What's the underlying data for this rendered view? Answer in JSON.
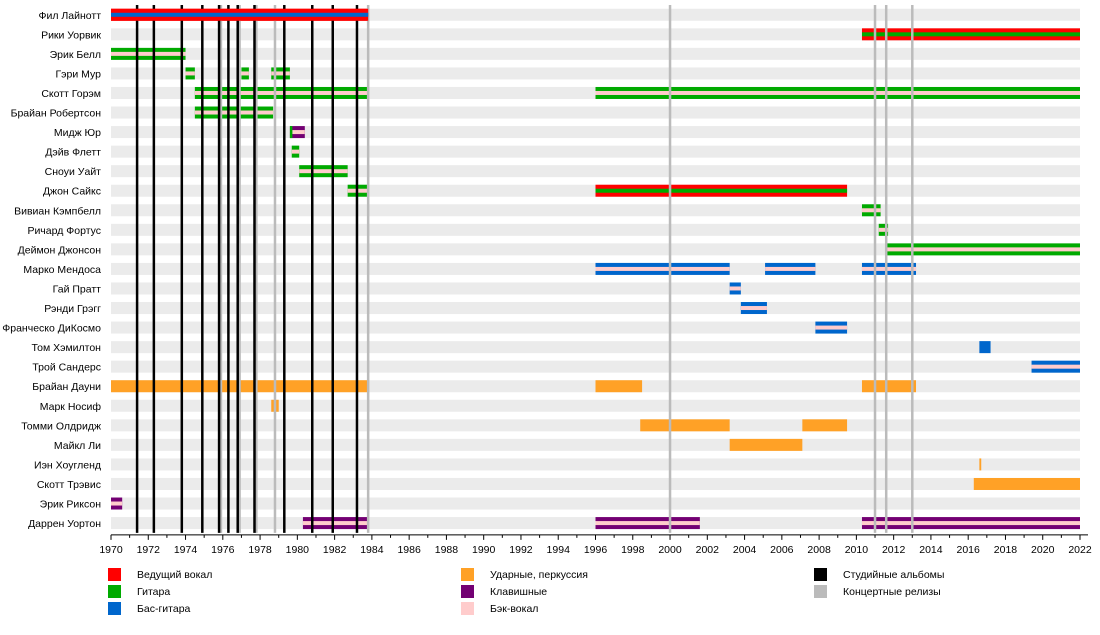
{
  "chart_data": {
    "type": "timeline",
    "title": "",
    "xlabel": "",
    "ylabel": "",
    "xlim": [
      1970,
      2022
    ],
    "x_ticks": [
      1970,
      1972,
      1974,
      1976,
      1978,
      1980,
      1982,
      1984,
      1986,
      1988,
      1990,
      1992,
      1994,
      1996,
      1998,
      2000,
      2002,
      2004,
      2006,
      2008,
      2010,
      2012,
      2014,
      2016,
      2018,
      2020,
      2022
    ],
    "grid": false,
    "colors": {
      "lead_vocals": "#ff0000",
      "guitar": "#00aa00",
      "bass": "#0066cc",
      "drums": "#ffa126",
      "keyboards": "#730073",
      "backing_vocals": "#ffcccc",
      "studio": "#000000",
      "live": "#bbbbbb",
      "row_bg": "#ebebeb"
    },
    "members": [
      {
        "name": "Фил Лайнотт",
        "bars": [
          {
            "start": 1970,
            "end": 1983.8,
            "main": "lead_vocals",
            "stripe": "bass"
          }
        ]
      },
      {
        "name": "Рики Уорвик",
        "bars": [
          {
            "start": 2010.3,
            "end": 2022,
            "main": "lead_vocals",
            "stripe": "guitar"
          }
        ]
      },
      {
        "name": "Эрик Белл",
        "bars": [
          {
            "start": 1970,
            "end": 1974.0,
            "main": "guitar",
            "stripe": "backing_vocals"
          }
        ]
      },
      {
        "name": "Гэри Мур",
        "bars": [
          {
            "start": 1974.0,
            "end": 1974.5,
            "main": "guitar",
            "stripe": "backing_vocals"
          },
          {
            "start": 1977.0,
            "end": 1977.4,
            "main": "guitar",
            "stripe": "backing_vocals"
          },
          {
            "start": 1978.6,
            "end": 1979.6,
            "main": "guitar",
            "stripe": "backing_vocals"
          }
        ]
      },
      {
        "name": "Скотт Горэм",
        "bars": [
          {
            "start": 1974.5,
            "end": 1983.8,
            "main": "guitar",
            "stripe": "backing_vocals"
          },
          {
            "start": 1996,
            "end": 2022,
            "main": "guitar",
            "stripe": "backing_vocals"
          }
        ]
      },
      {
        "name": "Брайан Робертсон",
        "bars": [
          {
            "start": 1974.5,
            "end": 1978.7,
            "main": "guitar",
            "stripe": "backing_vocals"
          }
        ]
      },
      {
        "name": "Мидж Юр",
        "bars": [
          {
            "start": 1979.6,
            "end": 1980.4,
            "main": "keyboards",
            "stripe": "backing_vocals",
            "lead": "guitar"
          }
        ]
      },
      {
        "name": "Дэйв Флетт",
        "bars": [
          {
            "start": 1979.7,
            "end": 1980.1,
            "main": "guitar",
            "stripe": "backing_vocals"
          }
        ]
      },
      {
        "name": "Сноуи Уайт",
        "bars": [
          {
            "start": 1980.1,
            "end": 1982.7,
            "main": "guitar",
            "stripe": "backing_vocals"
          }
        ]
      },
      {
        "name": "Джон Сайкс",
        "bars": [
          {
            "start": 1982.7,
            "end": 1983.8,
            "main": "guitar",
            "stripe": "backing_vocals"
          },
          {
            "start": 1996,
            "end": 2009.5,
            "main": "lead_vocals",
            "stripe": "guitar"
          }
        ]
      },
      {
        "name": "Вивиан Кэмпбелл",
        "bars": [
          {
            "start": 2010.3,
            "end": 2011.3,
            "main": "guitar",
            "stripe": "backing_vocals"
          }
        ]
      },
      {
        "name": "Ричард Фортус",
        "bars": [
          {
            "start": 2011.2,
            "end": 2011.7,
            "main": "guitar",
            "stripe": "backing_vocals"
          }
        ]
      },
      {
        "name": "Деймон Джонсон",
        "bars": [
          {
            "start": 2011.6,
            "end": 2022,
            "main": "guitar",
            "stripe": "backing_vocals"
          }
        ]
      },
      {
        "name": "Марко Мендоса",
        "bars": [
          {
            "start": 1996,
            "end": 2003.2,
            "main": "bass",
            "stripe": "backing_vocals"
          },
          {
            "start": 2005.1,
            "end": 2007.8,
            "main": "bass",
            "stripe": "backing_vocals"
          },
          {
            "start": 2010.3,
            "end": 2013.2,
            "main": "bass",
            "stripe": "backing_vocals"
          }
        ]
      },
      {
        "name": "Гай Пратт",
        "bars": [
          {
            "start": 2003.2,
            "end": 2003.8,
            "main": "bass",
            "stripe": "backing_vocals"
          }
        ]
      },
      {
        "name": "Рэнди Грэгг",
        "bars": [
          {
            "start": 2003.8,
            "end": 2005.2,
            "main": "bass",
            "stripe": "backing_vocals"
          }
        ]
      },
      {
        "name": "Франческо ДиКосмо",
        "bars": [
          {
            "start": 2007.8,
            "end": 2009.5,
            "main": "bass",
            "stripe": "backing_vocals"
          }
        ]
      },
      {
        "name": "Том Хэмилтон",
        "bars": [
          {
            "start": 2016.6,
            "end": 2017.2,
            "main": "bass",
            "stripe": null
          }
        ]
      },
      {
        "name": "Трой Сандерс",
        "bars": [
          {
            "start": 2019.4,
            "end": 2022,
            "main": "bass",
            "stripe": "backing_vocals"
          }
        ]
      },
      {
        "name": "Брайан Дауни",
        "bars": [
          {
            "start": 1970,
            "end": 1983.8,
            "main": "drums",
            "stripe": null
          },
          {
            "start": 1996,
            "end": 1998.5,
            "main": "drums",
            "stripe": null
          },
          {
            "start": 2010.3,
            "end": 2013.2,
            "main": "drums",
            "stripe": null
          }
        ]
      },
      {
        "name": "Марк Носиф",
        "bars": [
          {
            "start": 1978.6,
            "end": 1979.0,
            "main": "drums",
            "stripe": null
          }
        ]
      },
      {
        "name": "Томми Олдридж",
        "bars": [
          {
            "start": 1998.4,
            "end": 2003.2,
            "main": "drums",
            "stripe": null
          },
          {
            "start": 2007.1,
            "end": 2009.5,
            "main": "drums",
            "stripe": null
          }
        ]
      },
      {
        "name": "Майкл Ли",
        "bars": [
          {
            "start": 2003.2,
            "end": 2007.1,
            "main": "drums",
            "stripe": null
          }
        ]
      },
      {
        "name": "Иэн Хоугленд",
        "bars": [
          {
            "start": 2016.6,
            "end": 2016.7,
            "main": "drums",
            "stripe": null
          }
        ]
      },
      {
        "name": "Скотт Трэвис",
        "bars": [
          {
            "start": 2016.3,
            "end": 2022,
            "main": "drums",
            "stripe": null
          }
        ]
      },
      {
        "name": "Эрик Риксон",
        "bars": [
          {
            "start": 1970,
            "end": 1970.6,
            "main": "keyboards",
            "stripe": "backing_vocals"
          }
        ]
      },
      {
        "name": "Даррен Уортон",
        "bars": [
          {
            "start": 1980.3,
            "end": 1983.8,
            "main": "keyboards",
            "stripe": "backing_vocals"
          },
          {
            "start": 1996,
            "end": 2001.6,
            "main": "keyboards",
            "stripe": "backing_vocals"
          },
          {
            "start": 2010.3,
            "end": 2022,
            "main": "keyboards",
            "stripe": "backing_vocals"
          }
        ]
      }
    ],
    "studio_albums": [
      1971.4,
      1972.3,
      1973.8,
      1974.9,
      1975.8,
      1976.3,
      1976.8,
      1977.7,
      1979.3,
      1980.8,
      1981.9,
      1983.2
    ],
    "live_releases": [
      1975.9,
      1976.9,
      1977.8,
      1978.8,
      1983.8,
      2000.0,
      2011.0,
      2011.6,
      2013.0
    ],
    "legend": [
      {
        "key": "lead_vocals",
        "label": "Ведущий вокал"
      },
      {
        "key": "guitar",
        "label": "Гитара"
      },
      {
        "key": "bass",
        "label": "Бас-гитара"
      },
      {
        "key": "drums",
        "label": "Ударные, перкуссия"
      },
      {
        "key": "keyboards",
        "label": "Клавишные"
      },
      {
        "key": "backing_vocals",
        "label": "Бэк-вокал"
      },
      {
        "key": "studio",
        "label": "Студийные альбомы"
      },
      {
        "key": "live",
        "label": "Концертные релизы"
      }
    ],
    "legend_placement": "bottom"
  }
}
